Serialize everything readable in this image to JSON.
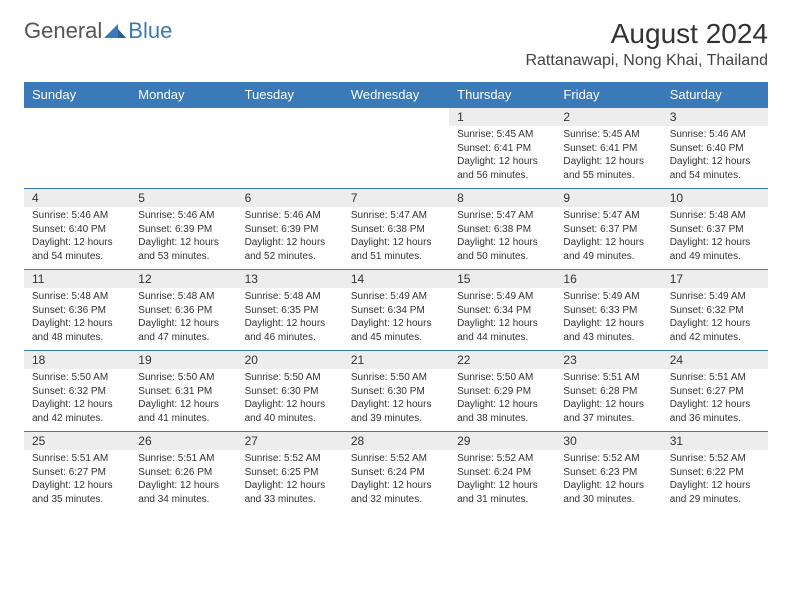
{
  "brand": {
    "text1": "General",
    "text2": "Blue"
  },
  "title": "August 2024",
  "location": "Rattanawapi, Nong Khai, Thailand",
  "colors": {
    "accent": "#3a7ab8",
    "header_bg": "#3a7ab8",
    "row_alt": "#ededed",
    "text": "#333333"
  },
  "weekdays": [
    "Sunday",
    "Monday",
    "Tuesday",
    "Wednesday",
    "Thursday",
    "Friday",
    "Saturday"
  ],
  "weeks": [
    [
      null,
      null,
      null,
      null,
      {
        "n": "1",
        "sunrise": "5:45 AM",
        "sunset": "6:41 PM",
        "daylight": "12 hours and 56 minutes."
      },
      {
        "n": "2",
        "sunrise": "5:45 AM",
        "sunset": "6:41 PM",
        "daylight": "12 hours and 55 minutes."
      },
      {
        "n": "3",
        "sunrise": "5:46 AM",
        "sunset": "6:40 PM",
        "daylight": "12 hours and 54 minutes."
      }
    ],
    [
      {
        "n": "4",
        "sunrise": "5:46 AM",
        "sunset": "6:40 PM",
        "daylight": "12 hours and 54 minutes."
      },
      {
        "n": "5",
        "sunrise": "5:46 AM",
        "sunset": "6:39 PM",
        "daylight": "12 hours and 53 minutes."
      },
      {
        "n": "6",
        "sunrise": "5:46 AM",
        "sunset": "6:39 PM",
        "daylight": "12 hours and 52 minutes."
      },
      {
        "n": "7",
        "sunrise": "5:47 AM",
        "sunset": "6:38 PM",
        "daylight": "12 hours and 51 minutes."
      },
      {
        "n": "8",
        "sunrise": "5:47 AM",
        "sunset": "6:38 PM",
        "daylight": "12 hours and 50 minutes."
      },
      {
        "n": "9",
        "sunrise": "5:47 AM",
        "sunset": "6:37 PM",
        "daylight": "12 hours and 49 minutes."
      },
      {
        "n": "10",
        "sunrise": "5:48 AM",
        "sunset": "6:37 PM",
        "daylight": "12 hours and 49 minutes."
      }
    ],
    [
      {
        "n": "11",
        "sunrise": "5:48 AM",
        "sunset": "6:36 PM",
        "daylight": "12 hours and 48 minutes."
      },
      {
        "n": "12",
        "sunrise": "5:48 AM",
        "sunset": "6:36 PM",
        "daylight": "12 hours and 47 minutes."
      },
      {
        "n": "13",
        "sunrise": "5:48 AM",
        "sunset": "6:35 PM",
        "daylight": "12 hours and 46 minutes."
      },
      {
        "n": "14",
        "sunrise": "5:49 AM",
        "sunset": "6:34 PM",
        "daylight": "12 hours and 45 minutes."
      },
      {
        "n": "15",
        "sunrise": "5:49 AM",
        "sunset": "6:34 PM",
        "daylight": "12 hours and 44 minutes."
      },
      {
        "n": "16",
        "sunrise": "5:49 AM",
        "sunset": "6:33 PM",
        "daylight": "12 hours and 43 minutes."
      },
      {
        "n": "17",
        "sunrise": "5:49 AM",
        "sunset": "6:32 PM",
        "daylight": "12 hours and 42 minutes."
      }
    ],
    [
      {
        "n": "18",
        "sunrise": "5:50 AM",
        "sunset": "6:32 PM",
        "daylight": "12 hours and 42 minutes."
      },
      {
        "n": "19",
        "sunrise": "5:50 AM",
        "sunset": "6:31 PM",
        "daylight": "12 hours and 41 minutes."
      },
      {
        "n": "20",
        "sunrise": "5:50 AM",
        "sunset": "6:30 PM",
        "daylight": "12 hours and 40 minutes."
      },
      {
        "n": "21",
        "sunrise": "5:50 AM",
        "sunset": "6:30 PM",
        "daylight": "12 hours and 39 minutes."
      },
      {
        "n": "22",
        "sunrise": "5:50 AM",
        "sunset": "6:29 PM",
        "daylight": "12 hours and 38 minutes."
      },
      {
        "n": "23",
        "sunrise": "5:51 AM",
        "sunset": "6:28 PM",
        "daylight": "12 hours and 37 minutes."
      },
      {
        "n": "24",
        "sunrise": "5:51 AM",
        "sunset": "6:27 PM",
        "daylight": "12 hours and 36 minutes."
      }
    ],
    [
      {
        "n": "25",
        "sunrise": "5:51 AM",
        "sunset": "6:27 PM",
        "daylight": "12 hours and 35 minutes."
      },
      {
        "n": "26",
        "sunrise": "5:51 AM",
        "sunset": "6:26 PM",
        "daylight": "12 hours and 34 minutes."
      },
      {
        "n": "27",
        "sunrise": "5:52 AM",
        "sunset": "6:25 PM",
        "daylight": "12 hours and 33 minutes."
      },
      {
        "n": "28",
        "sunrise": "5:52 AM",
        "sunset": "6:24 PM",
        "daylight": "12 hours and 32 minutes."
      },
      {
        "n": "29",
        "sunrise": "5:52 AM",
        "sunset": "6:24 PM",
        "daylight": "12 hours and 31 minutes."
      },
      {
        "n": "30",
        "sunrise": "5:52 AM",
        "sunset": "6:23 PM",
        "daylight": "12 hours and 30 minutes."
      },
      {
        "n": "31",
        "sunrise": "5:52 AM",
        "sunset": "6:22 PM",
        "daylight": "12 hours and 29 minutes."
      }
    ]
  ]
}
